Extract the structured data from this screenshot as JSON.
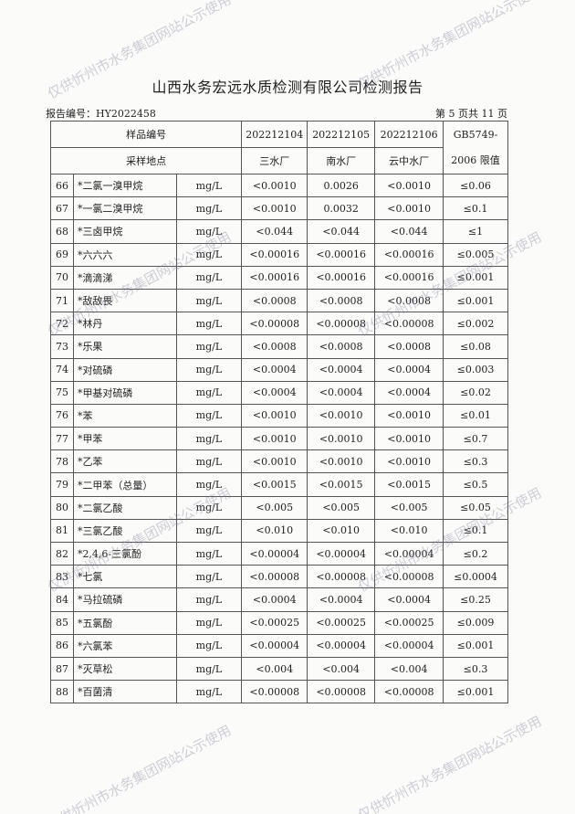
{
  "title": "山西水务宏远水质检测有限公司检测报告",
  "report_number": "报告编号：HY2022458",
  "page_info": "第 5 页共 11 页",
  "watermark": "仅供忻州市水务集团网站公示使用",
  "header": {
    "sample_id_label": "样品编号",
    "location_label": "采样地点",
    "samples": [
      {
        "id": "202212104",
        "location": "三水厂"
      },
      {
        "id": "202212105",
        "location": "南水厂"
      },
      {
        "id": "202212106",
        "location": "云中水厂"
      }
    ],
    "limit_label_1": "GB5749-",
    "limit_label_2": "2006 限值"
  },
  "rows": [
    {
      "no": "66",
      "item": "*二氯一溴甲烷",
      "unit": "mg/L",
      "v1": "<0.0010",
      "v2": "0.0026",
      "v3": "<0.0010",
      "limit": "≤0.06"
    },
    {
      "no": "67",
      "item": "*一氯二溴甲烷",
      "unit": "mg/L",
      "v1": "<0.0010",
      "v2": "0.0032",
      "v3": "<0.0010",
      "limit": "≤0.1"
    },
    {
      "no": "68",
      "item": "*三卤甲烷",
      "unit": "mg/L",
      "v1": "<0.044",
      "v2": "<0.044",
      "v3": "<0.044",
      "limit": "≤1"
    },
    {
      "no": "69",
      "item": "*六六六",
      "unit": "mg/L",
      "v1": "<0.00016",
      "v2": "<0.00016",
      "v3": "<0.00016",
      "limit": "≤0.005"
    },
    {
      "no": "70",
      "item": "*滴滴涕",
      "unit": "mg/L",
      "v1": "<0.00016",
      "v2": "<0.00016",
      "v3": "<0.00016",
      "limit": "≤0.001"
    },
    {
      "no": "71",
      "item": "*敌敌畏",
      "unit": "mg/L",
      "v1": "<0.0008",
      "v2": "<0.0008",
      "v3": "<0.0008",
      "limit": "≤0.001"
    },
    {
      "no": "72",
      "item": "*林丹",
      "unit": "mg/L",
      "v1": "<0.00008",
      "v2": "<0.00008",
      "v3": "<0.00008",
      "limit": "≤0.002"
    },
    {
      "no": "73",
      "item": "*乐果",
      "unit": "mg/L",
      "v1": "<0.0008",
      "v2": "<0.0008",
      "v3": "<0.0008",
      "limit": "≤0.08"
    },
    {
      "no": "74",
      "item": "*对硫磷",
      "unit": "mg/L",
      "v1": "<0.0004",
      "v2": "<0.0004",
      "v3": "<0.0004",
      "limit": "≤0.003"
    },
    {
      "no": "75",
      "item": "*甲基对硫磷",
      "unit": "mg/L",
      "v1": "<0.0004",
      "v2": "<0.0004",
      "v3": "<0.0004",
      "limit": "≤0.02"
    },
    {
      "no": "76",
      "item": "*苯",
      "unit": "mg/L",
      "v1": "<0.0010",
      "v2": "<0.0010",
      "v3": "<0.0010",
      "limit": "≤0.01"
    },
    {
      "no": "77",
      "item": "*甲苯",
      "unit": "mg/L",
      "v1": "<0.0010",
      "v2": "<0.0010",
      "v3": "<0.0010",
      "limit": "≤0.7"
    },
    {
      "no": "78",
      "item": "*乙苯",
      "unit": "mg/L",
      "v1": "<0.0010",
      "v2": "<0.0010",
      "v3": "<0.0010",
      "limit": "≤0.3"
    },
    {
      "no": "79",
      "item": "*二甲苯（总量）",
      "unit": "mg/L",
      "v1": "<0.0015",
      "v2": "<0.0015",
      "v3": "<0.0015",
      "limit": "≤0.5"
    },
    {
      "no": "80",
      "item": "*二氯乙酸",
      "unit": "mg/L",
      "v1": "<0.005",
      "v2": "<0.005",
      "v3": "<0.005",
      "limit": "≤0.05"
    },
    {
      "no": "81",
      "item": "*三氯乙酸",
      "unit": "mg/L",
      "v1": "<0.010",
      "v2": "<0.010",
      "v3": "<0.010",
      "limit": "≤0.1"
    },
    {
      "no": "82",
      "item": "*2,4,6-三氯酚",
      "unit": "mg/L",
      "v1": "<0.00004",
      "v2": "<0.00004",
      "v3": "<0.00004",
      "limit": "≤0.2"
    },
    {
      "no": "83",
      "item": "*七氯",
      "unit": "mg/L",
      "v1": "<0.00008",
      "v2": "<0.00008",
      "v3": "<0.00008",
      "limit": "≤0.0004"
    },
    {
      "no": "84",
      "item": "*马拉硫磷",
      "unit": "mg/L",
      "v1": "<0.0004",
      "v2": "<0.0004",
      "v3": "<0.0004",
      "limit": "≤0.25"
    },
    {
      "no": "85",
      "item": "*五氯酚",
      "unit": "mg/L",
      "v1": "<0.00025",
      "v2": "<0.00025",
      "v3": "<0.00025",
      "limit": "≤0.009"
    },
    {
      "no": "86",
      "item": "*六氯苯",
      "unit": "mg/L",
      "v1": "<0.00004",
      "v2": "<0.00004",
      "v3": "<0.00004",
      "limit": "≤0.001"
    },
    {
      "no": "87",
      "item": "*灭草松",
      "unit": "mg/L",
      "v1": "<0.004",
      "v2": "<0.004",
      "v3": "<0.004",
      "limit": "≤0.3"
    },
    {
      "no": "88",
      "item": "*百菌清",
      "unit": "mg/L",
      "v1": "<0.00008",
      "v2": "<0.00008",
      "v3": "<0.00008",
      "limit": "≤0.001"
    }
  ]
}
